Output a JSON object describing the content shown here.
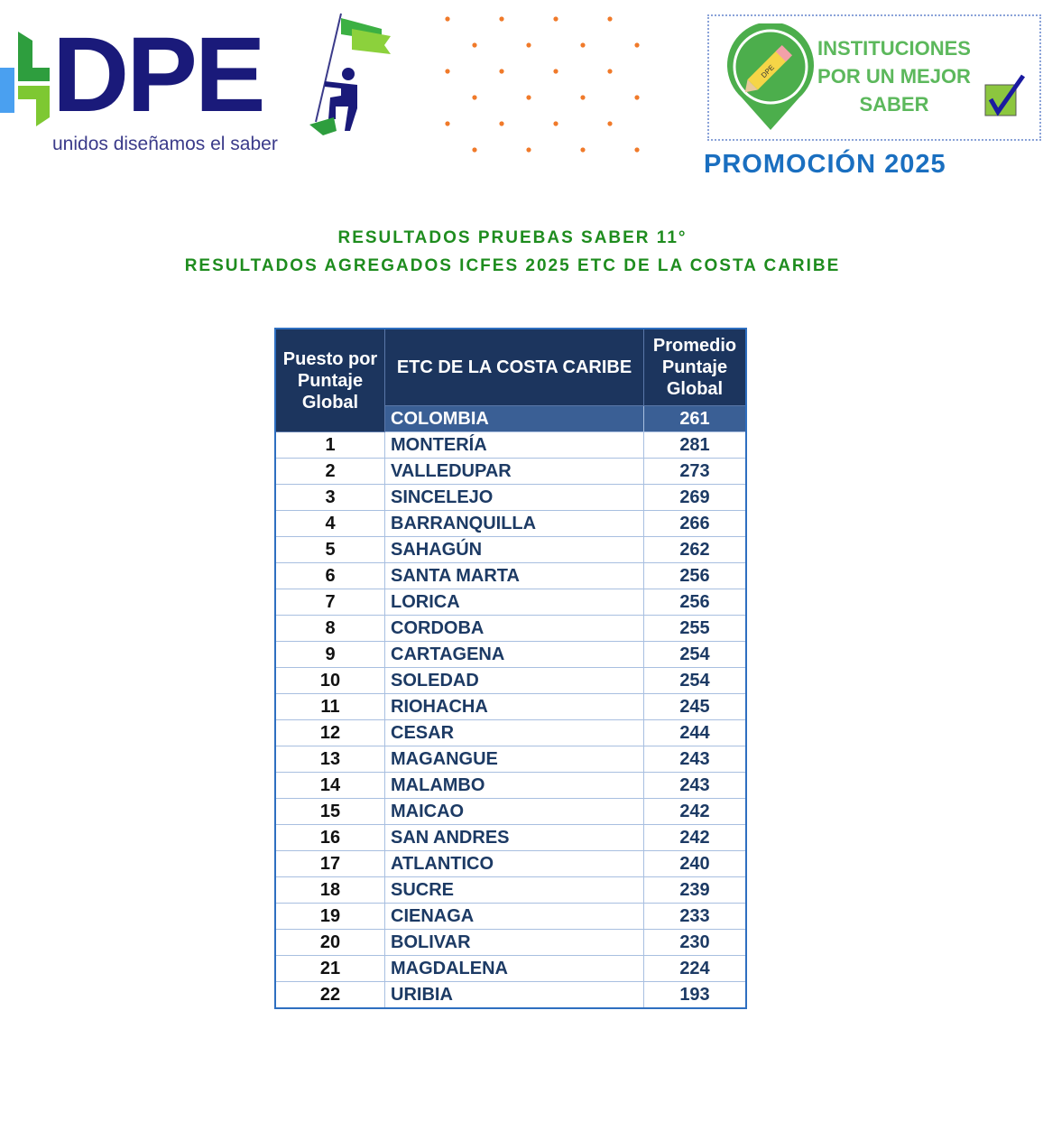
{
  "logo": {
    "text": "DPE",
    "tagline": "unidos diseñamos el saber"
  },
  "badge": {
    "lines": [
      "INSTITUCIONES",
      "POR UN MEJOR",
      "SABER"
    ],
    "pencil_text": "DPE",
    "promo": "PROMOCIÓN 2025"
  },
  "titles": [
    "RESULTADOS PRUEBAS SABER  11°",
    "RESULTADOS AGREGADOS ICFES 2025 ETC  DE LA COSTA CARIBE"
  ],
  "table": {
    "headers": [
      "Puesto por Puntaje Global",
      "ETC DE LA COSTA CARIBE",
      "Promedio Puntaje Global"
    ],
    "reference": {
      "name": "COLOMBIA",
      "score": "261"
    },
    "rows": [
      [
        "1",
        "MONTERÍA",
        "281"
      ],
      [
        "2",
        "VALLEDUPAR",
        "273"
      ],
      [
        "3",
        "SINCELEJO",
        "269"
      ],
      [
        "4",
        "BARRANQUILLA",
        "266"
      ],
      [
        "5",
        "SAHAGÚN",
        "262"
      ],
      [
        "6",
        "SANTA MARTA",
        "256"
      ],
      [
        "7",
        "LORICA",
        "256"
      ],
      [
        "8",
        "CORDOBA",
        "255"
      ],
      [
        "9",
        "CARTAGENA",
        "254"
      ],
      [
        "10",
        "SOLEDAD",
        "254"
      ],
      [
        "11",
        "RIOHACHA",
        "245"
      ],
      [
        "12",
        "CESAR",
        "244"
      ],
      [
        "13",
        "MAGANGUE",
        "243"
      ],
      [
        "14",
        "MALAMBO",
        "243"
      ],
      [
        "15",
        "MAICAO",
        "242"
      ],
      [
        "16",
        "SAN ANDRES",
        "242"
      ],
      [
        "17",
        "ATLANTICO",
        "240"
      ],
      [
        "18",
        "SUCRE",
        "239"
      ],
      [
        "19",
        "CIENAGA",
        "233"
      ],
      [
        "20",
        "BOLIVAR",
        "230"
      ],
      [
        "21",
        "MAGDALENA",
        "224"
      ],
      [
        "22",
        "URIBIA",
        "193"
      ]
    ]
  },
  "colors": {
    "header": "#1c355e",
    "title": "#1e8c1e",
    "promo": "#1a6fc0",
    "logo": "#1a1a7a"
  }
}
